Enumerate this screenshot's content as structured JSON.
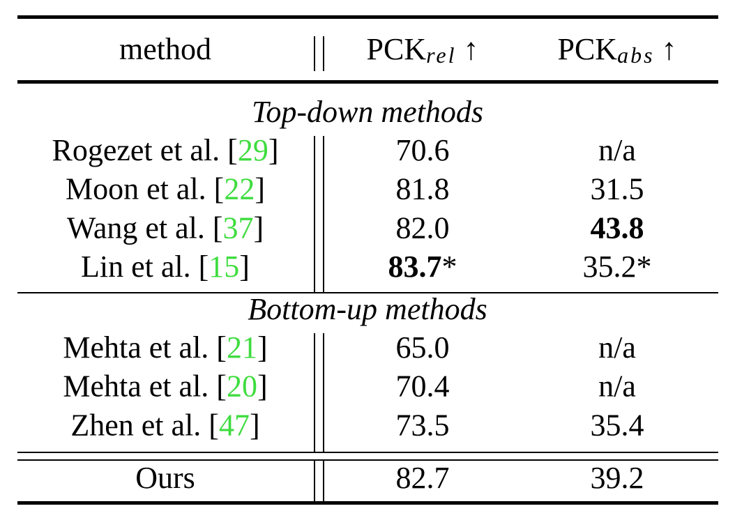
{
  "table": {
    "header": {
      "method": "method",
      "rel": {
        "base": "PCK",
        "sub": "rel",
        "arrow": "↑"
      },
      "abs": {
        "base": "PCK",
        "sub": "abs",
        "arrow": "↑"
      }
    },
    "sections": [
      {
        "title": "Top-down methods",
        "rows": [
          {
            "method": [
              "Rogezet et al. [",
              "29",
              "]"
            ],
            "rel": "70.6",
            "abs": "n/a"
          },
          {
            "method": [
              "Moon et al. [",
              "22",
              "]"
            ],
            "rel": "81.8",
            "abs": "31.5"
          },
          {
            "method": [
              "Wang et al. [",
              "37",
              "]"
            ],
            "rel": "82.0",
            "abs": {
              "text": "43.8",
              "bold": true
            }
          },
          {
            "method": [
              "Lin et al. [",
              "15",
              "]"
            ],
            "rel": {
              "text": "83.7",
              "suffix": "*",
              "bold": true
            },
            "abs": "35.2*"
          }
        ]
      },
      {
        "title": "Bottom-up methods",
        "rows": [
          {
            "method": [
              "Mehta et al. [",
              "21",
              "]"
            ],
            "rel": "65.0",
            "abs": "n/a"
          },
          {
            "method": [
              "Mehta et al. [",
              "20",
              "]"
            ],
            "rel": "70.4",
            "abs": "n/a"
          },
          {
            "method": [
              "Zhen et al. [",
              "47",
              "]"
            ],
            "rel": "73.5",
            "abs": "35.4"
          }
        ]
      }
    ],
    "final": {
      "method": [
        "Ours"
      ],
      "rel": "82.7",
      "abs": "39.2"
    }
  }
}
